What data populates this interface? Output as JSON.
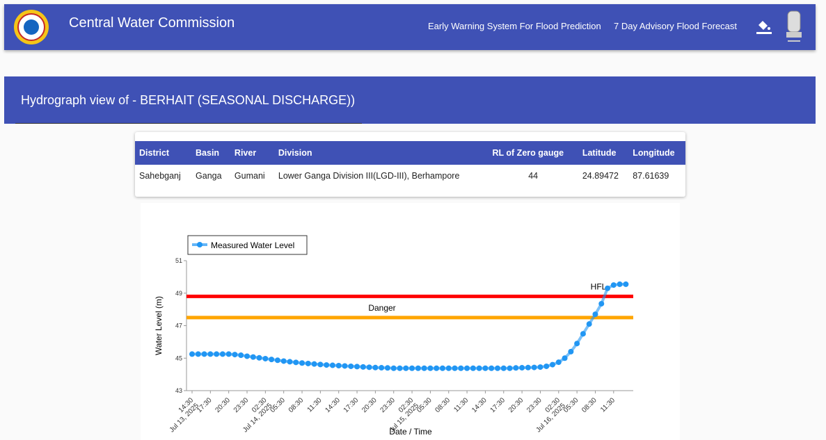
{
  "header": {
    "title": "Central Water Commission",
    "nav": [
      "Early Warning System For Flood Prediction",
      "7 Day Advisory Flood Forecast"
    ]
  },
  "page_title": "Hydrograph view of - BERHAIT (SEASONAL DISCHARGE))",
  "table": {
    "headers": [
      "District",
      "Basin",
      "River",
      "Division",
      "RL of Zero gauge",
      "Latitude",
      "Longitude"
    ],
    "rows": [
      [
        "Sahebganj",
        "Ganga",
        "Gumani",
        "Lower Ganga Division III(LGD-III), Berhampore",
        44,
        24.89472,
        87.61639
      ]
    ]
  },
  "chart_data": {
    "type": "line",
    "xlabel": "Date / Time",
    "ylabel": "Water Level (m)",
    "ylim": [
      43,
      51
    ],
    "yticks": [
      43,
      45,
      47,
      49,
      51
    ],
    "x": [
      "Jul 13, 2025 14:30",
      "Jul 13, 2025 15:30",
      "Jul 13, 2025 16:30",
      "Jul 13, 2025 17:30",
      "Jul 13, 2025 18:30",
      "Jul 13, 2025 19:30",
      "Jul 13, 2025 20:30",
      "Jul 13, 2025 21:30",
      "Jul 13, 2025 22:30",
      "Jul 13, 2025 23:30",
      "Jul 14, 2025 00:30",
      "Jul 14, 2025 01:30",
      "Jul 14, 2025 02:30",
      "Jul 14, 2025 03:30",
      "Jul 14, 2025 04:30",
      "Jul 14, 2025 05:30",
      "Jul 14, 2025 06:30",
      "Jul 14, 2025 07:30",
      "Jul 14, 2025 08:30",
      "Jul 14, 2025 09:30",
      "Jul 14, 2025 10:30",
      "Jul 14, 2025 11:30",
      "Jul 14, 2025 12:30",
      "Jul 14, 2025 13:30",
      "Jul 14, 2025 14:30",
      "Jul 14, 2025 15:30",
      "Jul 14, 2025 16:30",
      "Jul 14, 2025 17:30",
      "Jul 14, 2025 18:30",
      "Jul 14, 2025 19:30",
      "Jul 14, 2025 20:30",
      "Jul 14, 2025 21:30",
      "Jul 14, 2025 22:30",
      "Jul 14, 2025 23:30",
      "Jul 15, 2025 00:30",
      "Jul 15, 2025 01:30",
      "Jul 15, 2025 02:30",
      "Jul 15, 2025 03:30",
      "Jul 15, 2025 04:30",
      "Jul 15, 2025 05:30",
      "Jul 15, 2025 06:30",
      "Jul 15, 2025 07:30",
      "Jul 15, 2025 08:30",
      "Jul 15, 2025 09:30",
      "Jul 15, 2025 10:30",
      "Jul 15, 2025 11:30",
      "Jul 15, 2025 12:30",
      "Jul 15, 2025 13:30",
      "Jul 15, 2025 14:30",
      "Jul 15, 2025 15:30",
      "Jul 15, 2025 16:30",
      "Jul 15, 2025 17:30",
      "Jul 15, 2025 18:30",
      "Jul 15, 2025 19:30",
      "Jul 15, 2025 20:30",
      "Jul 15, 2025 21:30",
      "Jul 15, 2025 22:30",
      "Jul 15, 2025 23:30",
      "Jul 16, 2025 00:30",
      "Jul 16, 2025 01:30",
      "Jul 16, 2025 02:30",
      "Jul 16, 2025 03:30",
      "Jul 16, 2025 04:30",
      "Jul 16, 2025 05:30",
      "Jul 16, 2025 06:30",
      "Jul 16, 2025 07:30",
      "Jul 16, 2025 08:30",
      "Jul 16, 2025 09:30",
      "Jul 16, 2025 10:30",
      "Jul 16, 2025 11:30",
      "Jul 16, 2025 12:30",
      "Jul 16, 2025 13:30"
    ],
    "xticks": [
      {
        "value": "Jul 13, 2025 14:30",
        "label": "14:30",
        "sublabel": "Jul 13, 2025"
      },
      {
        "value": "Jul 13, 2025 17:30",
        "label": "17:30"
      },
      {
        "value": "Jul 13, 2025 20:30",
        "label": "20:30"
      },
      {
        "value": "Jul 13, 2025 23:30",
        "label": "23:30"
      },
      {
        "value": "Jul 14, 2025 02:30",
        "label": "02:30",
        "sublabel": "Jul 14, 2025"
      },
      {
        "value": "Jul 14, 2025 05:30",
        "label": "05:30"
      },
      {
        "value": "Jul 14, 2025 08:30",
        "label": "08:30"
      },
      {
        "value": "Jul 14, 2025 11:30",
        "label": "11:30"
      },
      {
        "value": "Jul 14, 2025 14:30",
        "label": "14:30"
      },
      {
        "value": "Jul 14, 2025 17:30",
        "label": "17:30"
      },
      {
        "value": "Jul 14, 2025 20:30",
        "label": "20:30"
      },
      {
        "value": "Jul 14, 2025 23:30",
        "label": "23:30"
      },
      {
        "value": "Jul 15, 2025 02:30",
        "label": "02:30",
        "sublabel": "Jul 15, 2025"
      },
      {
        "value": "Jul 15, 2025 05:30",
        "label": "05:30"
      },
      {
        "value": "Jul 15, 2025 08:30",
        "label": "08:30"
      },
      {
        "value": "Jul 15, 2025 11:30",
        "label": "11:30"
      },
      {
        "value": "Jul 15, 2025 14:30",
        "label": "14:30"
      },
      {
        "value": "Jul 15, 2025 17:30",
        "label": "17:30"
      },
      {
        "value": "Jul 15, 2025 20:30",
        "label": "20:30"
      },
      {
        "value": "Jul 15, 2025 23:30",
        "label": "23:30"
      },
      {
        "value": "Jul 16, 2025 02:30",
        "label": "02:30",
        "sublabel": "Jul 16, 2025"
      },
      {
        "value": "Jul 16, 2025 05:30",
        "label": "05:30"
      },
      {
        "value": "Jul 16, 2025 08:30",
        "label": "08:30"
      },
      {
        "value": "Jul 16, 2025 11:30",
        "label": "11:30"
      }
    ],
    "series": [
      {
        "name": "Measured Water Level",
        "color": "#2196f3",
        "values": [
          45.25,
          45.25,
          45.25,
          45.25,
          45.25,
          45.25,
          45.25,
          45.22,
          45.18,
          45.12,
          45.07,
          45.02,
          44.97,
          44.92,
          44.87,
          44.82,
          44.78,
          44.74,
          44.7,
          44.67,
          44.64,
          44.61,
          44.58,
          44.56,
          44.54,
          44.52,
          44.5,
          44.48,
          44.46,
          44.44,
          44.42,
          44.41,
          44.4,
          44.38,
          44.38,
          44.38,
          44.38,
          44.38,
          44.38,
          44.38,
          44.38,
          44.38,
          44.38,
          44.38,
          44.38,
          44.38,
          44.38,
          44.38,
          44.38,
          44.38,
          44.38,
          44.38,
          44.38,
          44.4,
          44.41,
          44.42,
          44.43,
          44.45,
          44.5,
          44.6,
          44.75,
          45.0,
          45.4,
          45.9,
          46.5,
          47.1,
          47.7,
          48.35,
          49.3,
          49.5,
          49.55,
          49.55
        ]
      }
    ],
    "reference_lines": [
      {
        "label": "HFL",
        "value": 48.8,
        "color": "#ff0000"
      },
      {
        "label": "Danger",
        "value": 47.5,
        "color": "#ffa500"
      }
    ]
  }
}
